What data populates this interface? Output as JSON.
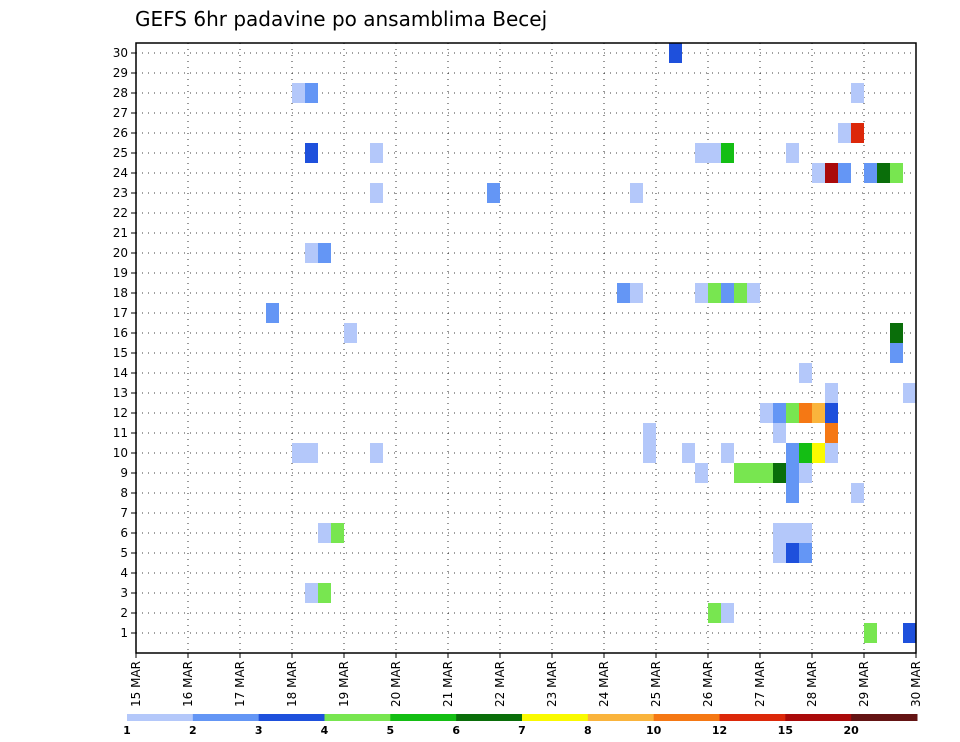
{
  "chart_data": {
    "type": "heatmap",
    "title": "GEFS 6hr padavine po ansamblima Becej",
    "xlabel": "",
    "ylabel": "",
    "x_range_days": [
      0,
      15
    ],
    "y_range_members": [
      0,
      30
    ],
    "x_ticks": [
      "15 MAR",
      "16 MAR",
      "17 MAR",
      "18 MAR",
      "19 MAR",
      "20 MAR",
      "21 MAR",
      "22 MAR",
      "23 MAR",
      "24 MAR",
      "25 MAR",
      "26 MAR",
      "27 MAR",
      "28 MAR",
      "29 MAR",
      "30 MAR"
    ],
    "y_ticks": [
      "1",
      "2",
      "3",
      "4",
      "5",
      "6",
      "7",
      "8",
      "9",
      "10",
      "11",
      "12",
      "13",
      "14",
      "15",
      "16",
      "17",
      "18",
      "19",
      "20",
      "21",
      "22",
      "23",
      "24",
      "25",
      "26",
      "27",
      "28",
      "29",
      "30"
    ],
    "colorbar": {
      "labels": [
        "1",
        "2",
        "3",
        "4",
        "5",
        "6",
        "7",
        "8",
        "10",
        "12",
        "15",
        "20"
      ],
      "colors": [
        "#b4c8fa",
        "#6496f5",
        "#1e50dc",
        "#78e650",
        "#14be14",
        "#0a6e0a",
        "#fafa00",
        "#fab43c",
        "#f57814",
        "#dc280a",
        "#aa0a0a",
        "#641414"
      ]
    },
    "cells": [
      {
        "member": 30,
        "t": 41,
        "c": 2
      },
      {
        "member": 28,
        "t": 12,
        "c": 0
      },
      {
        "member": 28,
        "t": 13,
        "c": 1
      },
      {
        "member": 28,
        "t": 55,
        "c": 0
      },
      {
        "member": 26,
        "t": 54,
        "c": 0
      },
      {
        "member": 26,
        "t": 55,
        "c": 9
      },
      {
        "member": 25,
        "t": 13,
        "c": 2
      },
      {
        "member": 25,
        "t": 18,
        "c": 0
      },
      {
        "member": 25,
        "t": 43,
        "c": 0
      },
      {
        "member": 25,
        "t": 44,
        "c": 0
      },
      {
        "member": 25,
        "t": 45,
        "c": 4
      },
      {
        "member": 25,
        "t": 50,
        "c": 0
      },
      {
        "member": 24,
        "t": 52,
        "c": 0
      },
      {
        "member": 24,
        "t": 53,
        "c": 10
      },
      {
        "member": 24,
        "t": 54,
        "c": 1
      },
      {
        "member": 24,
        "t": 56,
        "c": 1
      },
      {
        "member": 24,
        "t": 57,
        "c": 5
      },
      {
        "member": 24,
        "t": 58,
        "c": 3
      },
      {
        "member": 23,
        "t": 18,
        "c": 0
      },
      {
        "member": 23,
        "t": 27,
        "c": 1
      },
      {
        "member": 23,
        "t": 38,
        "c": 0
      },
      {
        "member": 20,
        "t": 13,
        "c": 0
      },
      {
        "member": 20,
        "t": 14,
        "c": 1
      },
      {
        "member": 18,
        "t": 37,
        "c": 1
      },
      {
        "member": 18,
        "t": 38,
        "c": 0
      },
      {
        "member": 18,
        "t": 43,
        "c": 0
      },
      {
        "member": 18,
        "t": 44,
        "c": 3
      },
      {
        "member": 18,
        "t": 45,
        "c": 1
      },
      {
        "member": 18,
        "t": 46,
        "c": 3
      },
      {
        "member": 18,
        "t": 47,
        "c": 0
      },
      {
        "member": 17,
        "t": 10,
        "c": 1
      },
      {
        "member": 16,
        "t": 16,
        "c": 0
      },
      {
        "member": 16,
        "t": 58,
        "c": 5
      },
      {
        "member": 15,
        "t": 58,
        "c": 1
      },
      {
        "member": 14,
        "t": 51,
        "c": 0
      },
      {
        "member": 13,
        "t": 53,
        "c": 0
      },
      {
        "member": 13,
        "t": 59,
        "c": 0
      },
      {
        "member": 12,
        "t": 48,
        "c": 0
      },
      {
        "member": 12,
        "t": 49,
        "c": 1
      },
      {
        "member": 12,
        "t": 50,
        "c": 3
      },
      {
        "member": 12,
        "t": 51,
        "c": 8
      },
      {
        "member": 12,
        "t": 52,
        "c": 7
      },
      {
        "member": 12,
        "t": 53,
        "c": 2
      },
      {
        "member": 11,
        "t": 39,
        "c": 0
      },
      {
        "member": 11,
        "t": 49,
        "c": 0
      },
      {
        "member": 11,
        "t": 53,
        "c": 8
      },
      {
        "member": 10,
        "t": 12,
        "c": 0
      },
      {
        "member": 10,
        "t": 13,
        "c": 0
      },
      {
        "member": 10,
        "t": 18,
        "c": 0
      },
      {
        "member": 10,
        "t": 45,
        "c": 0
      },
      {
        "member": 10,
        "t": 39,
        "c": 0
      },
      {
        "member": 10,
        "t": 42,
        "c": 0
      },
      {
        "member": 10,
        "t": 50,
        "c": 1
      },
      {
        "member": 10,
        "t": 51,
        "c": 4
      },
      {
        "member": 10,
        "t": 52,
        "c": 6
      },
      {
        "member": 10,
        "t": 53,
        "c": 0
      },
      {
        "member": 9,
        "t": 43,
        "c": 0
      },
      {
        "member": 9,
        "t": 46,
        "c": 3
      },
      {
        "member": 9,
        "t": 47,
        "c": 3
      },
      {
        "member": 9,
        "t": 48,
        "c": 3
      },
      {
        "member": 9,
        "t": 49,
        "c": 5
      },
      {
        "member": 9,
        "t": 50,
        "c": 1
      },
      {
        "member": 9,
        "t": 51,
        "c": 0
      },
      {
        "member": 8,
        "t": 50,
        "c": 1
      },
      {
        "member": 8,
        "t": 55,
        "c": 0
      },
      {
        "member": 6,
        "t": 14,
        "c": 0
      },
      {
        "member": 6,
        "t": 15,
        "c": 3
      },
      {
        "member": 6,
        "t": 49,
        "c": 0
      },
      {
        "member": 6,
        "t": 50,
        "c": 0
      },
      {
        "member": 6,
        "t": 51,
        "c": 0
      },
      {
        "member": 5,
        "t": 49,
        "c": 0
      },
      {
        "member": 5,
        "t": 50,
        "c": 2
      },
      {
        "member": 5,
        "t": 51,
        "c": 1
      },
      {
        "member": 3,
        "t": 13,
        "c": 0
      },
      {
        "member": 3,
        "t": 14,
        "c": 3
      },
      {
        "member": 2,
        "t": 44,
        "c": 3
      },
      {
        "member": 2,
        "t": 45,
        "c": 0
      },
      {
        "member": 1,
        "t": 56,
        "c": 3
      },
      {
        "member": 1,
        "t": 59,
        "c": 2
      }
    ]
  }
}
